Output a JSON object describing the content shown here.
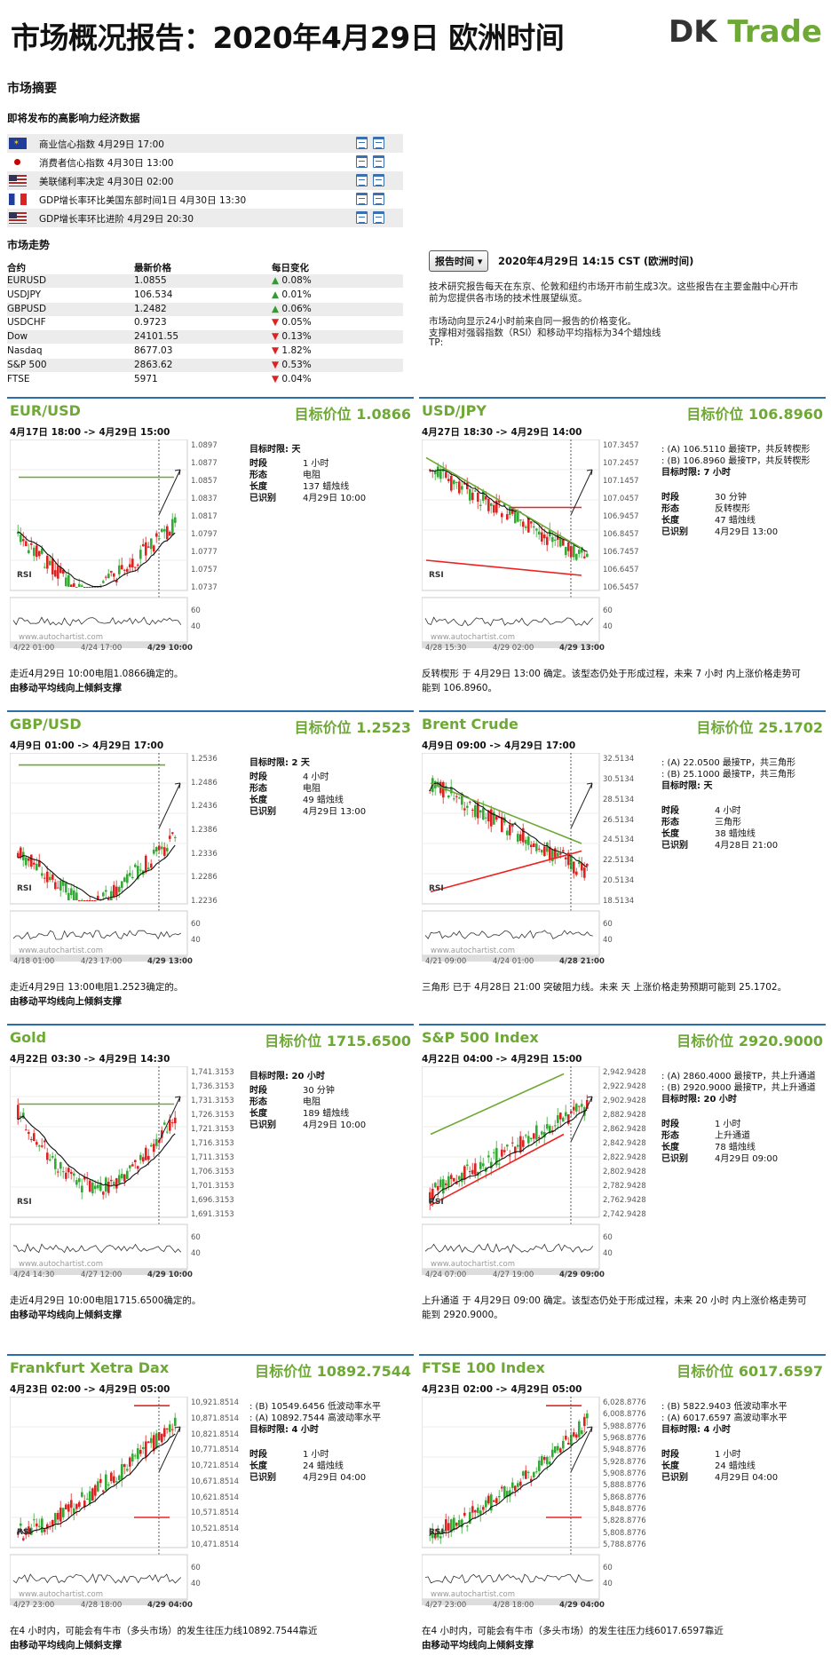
{
  "header": {
    "title": "市场概况报告：2020年4月29日 欧洲时间",
    "logo_a": "DK",
    "logo_b": "Trade"
  },
  "summary": {
    "title": "市场摘要",
    "events_title": "即将发布的高影响力经济数据",
    "events": [
      {
        "flag": "eu",
        "text": "商业信心指数 4月29日 17:00"
      },
      {
        "flag": "jp",
        "text": "消费者信心指数 4月30日 13:00"
      },
      {
        "flag": "us",
        "text": "美联储利率决定 4月30日 02:00"
      },
      {
        "flag": "fr",
        "text": "GDP增长率环比美国东部时间1日 4月30日 13:30"
      },
      {
        "flag": "us",
        "text": "GDP增长率环比进阶 4月29日 20:30"
      }
    ],
    "markets_title": "市场走势",
    "markets_cols": [
      "合约",
      "最新价格",
      "每日变化"
    ],
    "markets": [
      {
        "name": "EURUSD",
        "price": "1.0855",
        "change": "0.08%",
        "dir": "up"
      },
      {
        "name": "USDJPY",
        "price": "106.534",
        "change": "0.01%",
        "dir": "up"
      },
      {
        "name": "GBPUSD",
        "price": "1.2482",
        "change": "0.06%",
        "dir": "up"
      },
      {
        "name": "USDCHF",
        "price": "0.9723",
        "change": "0.05%",
        "dir": "dn"
      },
      {
        "name": "Dow",
        "price": "24101.55",
        "change": "0.13%",
        "dir": "dn"
      },
      {
        "name": "Nasdaq",
        "price": "8677.03",
        "change": "1.82%",
        "dir": "dn"
      },
      {
        "name": "S&P 500",
        "price": "2863.62",
        "change": "0.53%",
        "dir": "dn"
      },
      {
        "name": "FTSE",
        "price": "5971",
        "change": "0.04%",
        "dir": "dn"
      }
    ]
  },
  "report": {
    "button": "报告时间",
    "date": "2020年4月29日 14:15 CST (欧洲时间)",
    "lines": [
      "技术研究报告每天在东京、伦敦和纽约市场开市前生成3次。这些报告在主要金融中心开市",
      "前为您提供各市场的技术性展望纵览。",
      "",
      "市场动向显示24小时前来自同一报告的价格变化。",
      "支撑相对强弱指数（RSI）和移动平均指标为34个蜡烛线",
      "TP:"
    ]
  },
  "labels": {
    "rsi": "RSI",
    "watermark": "www.autochartist.com",
    "k_target_time": "目标时限:",
    "k_period": "时段",
    "k_pattern": "形态",
    "k_length": "长度",
    "k_identified": "已识别"
  },
  "panels": [
    {
      "title": "EUR/USD",
      "target": "目标价位 1.0866",
      "range": "4月17日 18:00 -> 4月29日 15:00",
      "tp": [],
      "target_time": "天",
      "period": "1 小时",
      "pattern": "电阻",
      "length": "137 蜡烛线",
      "identified": "4月29日 10:00",
      "yticks": [
        "1.0897",
        "1.0877",
        "1.0857",
        "1.0837",
        "1.0817",
        "1.0797",
        "1.0777",
        "1.0757",
        "1.0737"
      ],
      "rsi_ticks": [
        "60",
        "40"
      ],
      "xticks": [
        "4/22 01:00",
        "4/24 17:00",
        "4/29 10:00"
      ],
      "desc": "走近4月29日 10:00电阻1.0866确定的。",
      "desc2": "由移动平均线向上倾斜支撑",
      "seed": 3,
      "trend": "vshape",
      "line": "flat"
    },
    {
      "title": "USD/JPY",
      "target": "目标价位 106.8960",
      "range": "4月27日 18:30 -> 4月29日 14:00",
      "tp": [
        ": (A) 106.5110 最接TP，共反转楔形",
        ": (B) 106.8960 最接TP，共反转楔形"
      ],
      "target_time": "7 小时",
      "period": "30 分钟",
      "pattern": "反转楔形",
      "length": "47 蜡烛线",
      "identified": "4月29日 13:00",
      "yticks": [
        "107.3457",
        "107.2457",
        "107.1457",
        "107.0457",
        "106.9457",
        "106.8457",
        "106.7457",
        "106.6457",
        "106.5457"
      ],
      "rsi_ticks": [
        "60",
        "40"
      ],
      "xticks": [
        "4/28 15:30",
        "4/29 02:00",
        "4/29 13:00"
      ],
      "desc": "反转楔形 于 4月29日 13:00 确定。该型态仍处于形成过程，未来 7 小时 内上涨价格走势可",
      "desc2b": "能到 106.8960。",
      "seed": 7,
      "trend": "down",
      "line": "wedge"
    },
    {
      "title": "GBP/USD",
      "target": "目标价位 1.2523",
      "range": "4月9日 01:00 -> 4月29日 17:00",
      "tp": [],
      "target_time": "2 天",
      "period": "4 小时",
      "pattern": "电阻",
      "length": "49 蜡烛线",
      "identified": "4月29日 13:00",
      "yticks": [
        "1.2536",
        "1.2486",
        "1.2436",
        "1.2386",
        "1.2336",
        "1.2286",
        "1.2236"
      ],
      "rsi_ticks": [
        "60",
        "40"
      ],
      "xticks": [
        "4/18 01:00",
        "4/23 17:00",
        "4/29 13:00"
      ],
      "desc": "走近4月29日 13:00电阻1.2523确定的。",
      "desc2": "由移动平均线向上倾斜支撑",
      "seed": 11,
      "trend": "vshape",
      "line": "flattop"
    },
    {
      "title": "Brent Crude",
      "target": "目标价位 25.1702",
      "range": "4月9日 09:00 -> 4月29日 17:00",
      "tp": [
        ": (A) 22.0500 最接TP，共三角形",
        ": (B) 25.1000 最接TP，共三角形"
      ],
      "target_time": "天",
      "period": "4 小时",
      "pattern": "三角形",
      "length": "38 蜡烛线",
      "identified": "4月28日 21:00",
      "yticks": [
        "32.5134",
        "30.5134",
        "28.5134",
        "26.5134",
        "24.5134",
        "22.5134",
        "20.5134",
        "18.5134"
      ],
      "rsi_ticks": [
        "60",
        "40"
      ],
      "xticks": [
        "4/21 09:00",
        "4/24 01:00",
        "4/28 21:00"
      ],
      "desc": "三角形 已于 4月28日 21:00 突破阻力线。未来 天 上涨价格走势预期可能到 25.1702。",
      "seed": 17,
      "trend": "down",
      "line": "triangle"
    },
    {
      "title": "Gold",
      "target": "目标价位 1715.6500",
      "range": "4月22日 03:30 -> 4月29日 14:30",
      "tp": [],
      "target_time": "20 小时",
      "period": "30 分钟",
      "pattern": "电阻",
      "length": "189 蜡烛线",
      "identified": "4月29日 10:00",
      "yticks": [
        "1,741.3153",
        "1,736.3153",
        "1,731.3153",
        "1,726.3153",
        "1,721.3153",
        "1,716.3153",
        "1,711.3153",
        "1,706.3153",
        "1,701.3153",
        "1,696.3153",
        "1,691.3153"
      ],
      "rsi_ticks": [
        "60",
        "40"
      ],
      "xticks": [
        "4/24 14:30",
        "4/27 12:00",
        "4/29 10:00"
      ],
      "desc": "走近4月29日 10:00电阻1715.6500确定的。",
      "desc2": "由移动平均线向上倾斜支撑",
      "seed": 23,
      "trend": "downup",
      "line": "flat"
    },
    {
      "title": "S&P 500 Index",
      "target": "目标价位 2920.9000",
      "range": "4月22日 04:00 -> 4月29日 15:00",
      "tp": [
        ": (A) 2860.4000 最接TP，共上升通道",
        ": (B) 2920.9000 最接TP，共上升通道"
      ],
      "target_time": "20 小时",
      "period": "1 小时",
      "pattern": "上升通道",
      "length": "78 蜡烛线",
      "identified": "4月29日 09:00",
      "yticks": [
        "2,942.9428",
        "2,922.9428",
        "2,902.9428",
        "2,882.9428",
        "2,862.9428",
        "2,842.9428",
        "2,822.9428",
        "2,802.9428",
        "2,782.9428",
        "2,762.9428",
        "2,742.9428"
      ],
      "rsi_ticks": [
        "60",
        "40"
      ],
      "xticks": [
        "4/24 07:00",
        "4/27 19:00",
        "4/29 09:00"
      ],
      "desc": "上升通道 于 4月29日 09:00 确定。该型态仍处于形成过程，未来 20 小时 内上涨价格走势可",
      "desc2b": "能到 2920.9000。",
      "seed": 29,
      "trend": "up",
      "line": "channel"
    },
    {
      "title": "Frankfurt Xetra Dax",
      "target": "目标价位 10892.7544",
      "range": "4月23日 02:00 -> 4月29日 05:00",
      "tp": [
        ": (B) 10549.6456 低波动率水平",
        ": (A) 10892.7544 高波动率水平"
      ],
      "target_time": "4 小时",
      "period": "1 小时",
      "pattern": "",
      "length": "24 蜡烛线",
      "identified": "4月29日 04:00",
      "yticks": [
        "10,921.8514",
        "10,871.8514",
        "10,821.8514",
        "10,771.8514",
        "10,721.8514",
        "10,671.8514",
        "10,621.8514",
        "10,571.8514",
        "10,521.8514",
        "10,471.8514"
      ],
      "rsi_ticks": [
        "60",
        "40"
      ],
      "xticks": [
        "4/27 23:00",
        "4/28 18:00",
        "4/29 04:00"
      ],
      "desc": "在4 小时内，可能会有牛市（多头市场）的发生往压力线10892.7544靠近",
      "desc2": "由移动平均线向上倾斜支撑",
      "seed": 31,
      "trend": "upend",
      "line": "vol"
    },
    {
      "title": "FTSE 100 Index",
      "target": "目标价位 6017.6597",
      "range": "4月23日 02:00 -> 4月29日 05:00",
      "tp": [
        ": (B) 5822.9403 低波动率水平",
        ": (A) 6017.6597 高波动率水平"
      ],
      "target_time": "4 小时",
      "period": "1 小时",
      "pattern": "",
      "length": "24 蜡烛线",
      "identified": "4月29日 04:00",
      "yticks": [
        "6,028.8776",
        "6,008.8776",
        "5,988.8776",
        "5,968.8776",
        "5,948.8776",
        "5,928.8776",
        "5,908.8776",
        "5,888.8776",
        "5,868.8776",
        "5,848.8776",
        "5,828.8776",
        "5,808.8776",
        "5,788.8776"
      ],
      "rsi_ticks": [
        "60",
        "40"
      ],
      "xticks": [
        "4/27 23:00",
        "4/28 18:00",
        "4/29 04:00"
      ],
      "desc": "在4 小时内，可能会有牛市（多头市场）的发生往压力线6017.6597靠近",
      "desc2": "由移动平均线向上倾斜支撑",
      "seed": 37,
      "trend": "upend",
      "line": "vol"
    }
  ]
}
